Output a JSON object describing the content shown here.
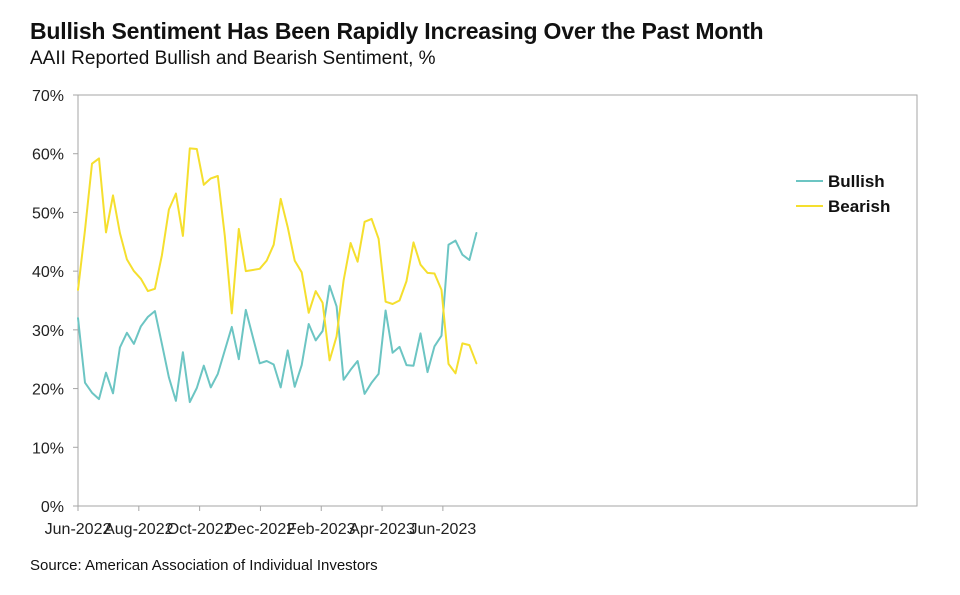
{
  "chart_data": {
    "type": "line",
    "title": "Bullish Sentiment Has Been Rapidly Increasing Over the Past Month",
    "subtitle": "AAII Reported Bullish and Bearish Sentiment, %",
    "source": "Source: American Association of Individual Investors",
    "xlabel": "",
    "ylabel": "",
    "ylim": [
      0,
      70
    ],
    "yticks": [
      0,
      10,
      20,
      30,
      40,
      50,
      60,
      70
    ],
    "ytick_labels": [
      "0%",
      "10%",
      "20%",
      "30%",
      "40%",
      "50%",
      "60%",
      "70%"
    ],
    "xtick_labels": [
      "Jun-2022",
      "Aug-2022",
      "Oct-2022",
      "Dec-2022",
      "Feb-2023",
      "Apr-2023",
      "Jun-2023"
    ],
    "xtick_week_index": [
      0,
      8.7,
      17.4,
      26.1,
      34.8,
      43.5,
      52.2
    ],
    "grid": false,
    "legend_position": "right",
    "series": [
      {
        "name": "Bullish",
        "color": "#6cc5c3",
        "values": [
          32.0,
          21.0,
          19.3,
          18.2,
          22.7,
          19.2,
          27.0,
          29.5,
          27.6,
          30.6,
          32.2,
          33.2,
          27.6,
          21.9,
          17.9,
          26.2,
          17.7,
          20.1,
          23.9,
          20.2,
          22.5,
          26.5,
          30.5,
          25.0,
          33.4,
          28.8,
          24.3,
          24.7,
          24.1,
          20.2,
          26.5,
          20.3,
          24.0,
          31.0,
          28.2,
          29.8,
          37.5,
          34.0,
          21.5,
          23.2,
          24.7,
          19.1,
          21.0,
          22.5,
          33.3,
          26.1,
          27.1,
          24.0,
          23.9,
          29.4,
          22.8,
          27.2,
          29.0,
          44.5,
          45.2,
          42.8,
          41.9,
          46.5
        ]
      },
      {
        "name": "Bearish",
        "color": "#f5df2e",
        "values": [
          36.8,
          47.0,
          58.3,
          59.2,
          46.6,
          52.9,
          46.5,
          42.0,
          40.0,
          38.7,
          36.6,
          37.0,
          42.7,
          50.5,
          53.2,
          46.0,
          60.9,
          60.8,
          54.7,
          55.8,
          56.2,
          46.0,
          32.8,
          47.2,
          40.0,
          40.2,
          40.4,
          41.8,
          44.5,
          52.3,
          47.5,
          41.8,
          39.8,
          32.9,
          36.6,
          34.6,
          24.8,
          28.9,
          38.4,
          44.8,
          41.6,
          48.4,
          48.9,
          45.5,
          34.8,
          34.4,
          35.0,
          38.3,
          44.9,
          41.1,
          39.7,
          39.6,
          36.8,
          24.2,
          22.6,
          27.7,
          27.4,
          24.3
        ]
      }
    ]
  }
}
